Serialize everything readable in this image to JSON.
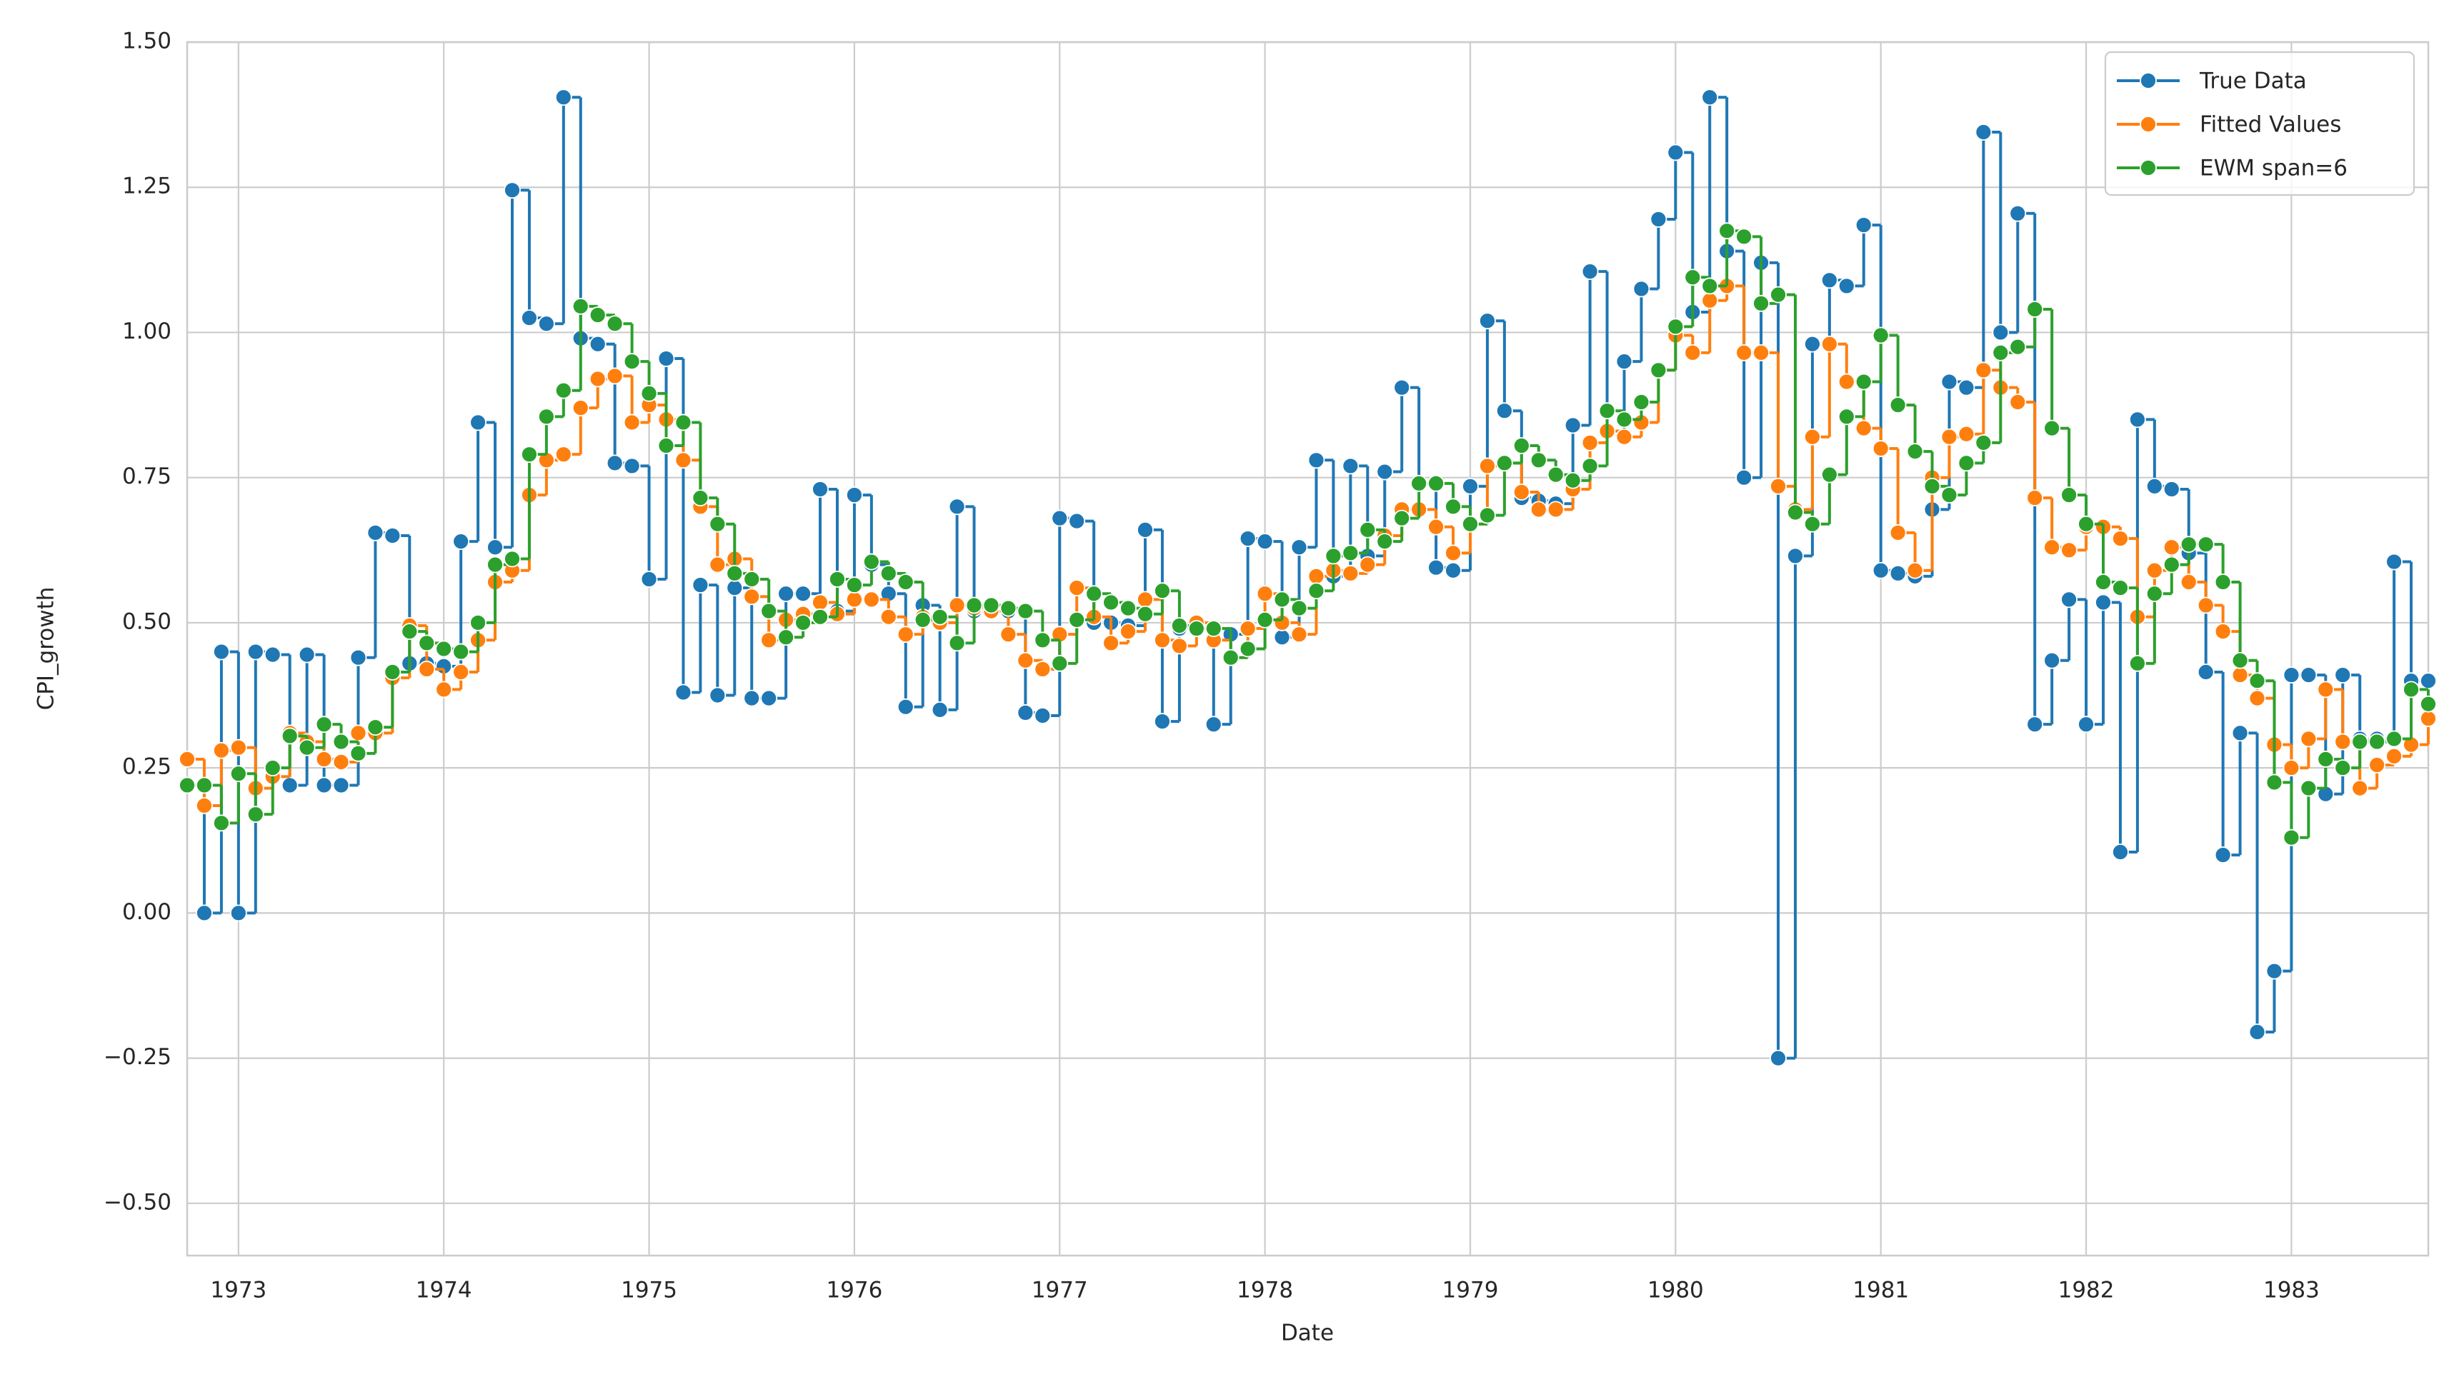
{
  "chart_data": {
    "type": "step-line",
    "xlabel": "Date",
    "ylabel": "CPI_growth",
    "x": [
      "1972-10",
      "1972-11",
      "1972-12",
      "1973-01",
      "1973-02",
      "1973-03",
      "1973-04",
      "1973-05",
      "1973-06",
      "1973-07",
      "1973-08",
      "1973-09",
      "1973-10",
      "1973-11",
      "1973-12",
      "1974-01",
      "1974-02",
      "1974-03",
      "1974-04",
      "1974-05",
      "1974-06",
      "1974-07",
      "1974-08",
      "1974-09",
      "1974-10",
      "1974-11",
      "1974-12",
      "1975-01",
      "1975-02",
      "1975-03",
      "1975-04",
      "1975-05",
      "1975-06",
      "1975-07",
      "1975-08",
      "1975-09",
      "1975-10",
      "1975-11",
      "1975-12",
      "1976-01",
      "1976-02",
      "1976-03",
      "1976-04",
      "1976-05",
      "1976-06",
      "1976-07",
      "1976-08",
      "1976-09",
      "1976-10",
      "1976-11",
      "1976-12",
      "1977-01",
      "1977-02",
      "1977-03",
      "1977-04",
      "1977-05",
      "1977-06",
      "1977-07",
      "1977-08",
      "1977-09",
      "1977-10",
      "1977-11",
      "1977-12",
      "1978-01",
      "1978-02",
      "1978-03",
      "1978-04",
      "1978-05",
      "1978-06",
      "1978-07",
      "1978-08",
      "1978-09",
      "1978-10",
      "1978-11",
      "1978-12",
      "1979-01",
      "1979-02",
      "1979-03",
      "1979-04",
      "1979-05",
      "1979-06",
      "1979-07",
      "1979-08",
      "1979-09",
      "1979-10",
      "1979-11",
      "1979-12",
      "1980-01",
      "1980-02",
      "1980-03",
      "1980-04",
      "1980-05",
      "1980-06",
      "1980-07",
      "1980-08",
      "1980-09",
      "1980-10",
      "1980-11",
      "1980-12",
      "1981-01",
      "1981-02",
      "1981-03",
      "1981-04",
      "1981-05",
      "1981-06",
      "1981-07",
      "1981-08",
      "1981-09",
      "1981-10",
      "1981-11",
      "1981-12",
      "1982-01",
      "1982-02",
      "1982-03",
      "1982-04",
      "1982-05",
      "1982-06",
      "1982-07",
      "1982-08",
      "1982-09",
      "1982-10",
      "1982-11",
      "1982-12",
      "1983-01",
      "1983-02",
      "1983-03",
      "1983-04",
      "1983-05",
      "1983-06",
      "1983-07",
      "1983-08",
      "1983-09"
    ],
    "series": [
      {
        "name": "True Data",
        "color": "#1f77b4",
        "values": [
          0.22,
          0.0,
          0.45,
          0.0,
          0.45,
          0.445,
          0.22,
          0.445,
          0.22,
          0.22,
          0.44,
          0.655,
          0.65,
          0.43,
          0.43,
          0.425,
          0.64,
          0.845,
          0.63,
          1.245,
          1.025,
          1.015,
          1.405,
          0.99,
          0.98,
          0.775,
          0.77,
          0.575,
          0.955,
          0.38,
          0.565,
          0.375,
          0.56,
          0.37,
          0.37,
          0.55,
          0.55,
          0.73,
          0.52,
          0.72,
          0.6,
          0.55,
          0.355,
          0.53,
          0.35,
          0.7,
          0.52,
          0.52,
          0.52,
          0.345,
          0.34,
          0.68,
          0.675,
          0.5,
          0.5,
          0.495,
          0.66,
          0.33,
          0.49,
          0.49,
          0.325,
          0.48,
          0.645,
          0.64,
          0.475,
          0.63,
          0.78,
          0.58,
          0.77,
          0.615,
          0.76,
          0.905,
          0.74,
          0.595,
          0.59,
          0.735,
          1.02,
          0.865,
          0.715,
          0.71,
          0.705,
          0.84,
          1.105,
          0.83,
          0.95,
          1.075,
          1.195,
          1.31,
          1.035,
          1.405,
          1.14,
          0.75,
          1.12,
          -0.25,
          0.615,
          0.98,
          1.09,
          1.08,
          1.185,
          0.59,
          0.585,
          0.58,
          0.695,
          0.915,
          0.905,
          1.345,
          1.0,
          1.205,
          0.325,
          0.435,
          0.54,
          0.325,
          0.535,
          0.105,
          0.85,
          0.735,
          0.73,
          0.62,
          0.415,
          0.1,
          0.31,
          -0.205,
          -0.1,
          0.41,
          0.41,
          0.205,
          0.41,
          0.3,
          0.3,
          0.605,
          0.4,
          0.4
        ]
      },
      {
        "name": "Fitted Values",
        "color": "#ff7f0e",
        "values": [
          0.265,
          0.185,
          0.28,
          0.285,
          0.215,
          0.235,
          0.31,
          0.295,
          0.265,
          0.26,
          0.31,
          0.31,
          0.405,
          0.495,
          0.42,
          0.385,
          0.415,
          0.47,
          0.57,
          0.59,
          0.72,
          0.78,
          0.79,
          0.87,
          0.92,
          0.925,
          0.845,
          0.875,
          0.85,
          0.78,
          0.7,
          0.6,
          0.61,
          0.545,
          0.47,
          0.505,
          0.515,
          0.535,
          0.515,
          0.54,
          0.54,
          0.51,
          0.48,
          0.51,
          0.5,
          0.53,
          0.525,
          0.52,
          0.48,
          0.435,
          0.42,
          0.48,
          0.56,
          0.51,
          0.465,
          0.485,
          0.54,
          0.47,
          0.46,
          0.5,
          0.47,
          0.44,
          0.49,
          0.55,
          0.5,
          0.48,
          0.58,
          0.59,
          0.585,
          0.6,
          0.65,
          0.695,
          0.695,
          0.665,
          0.62,
          0.67,
          0.77,
          0.775,
          0.725,
          0.695,
          0.695,
          0.73,
          0.81,
          0.83,
          0.82,
          0.845,
          0.935,
          0.995,
          0.965,
          1.055,
          1.08,
          0.965,
          0.965,
          0.735,
          0.695,
          0.82,
          0.98,
          0.915,
          0.835,
          0.8,
          0.655,
          0.59,
          0.75,
          0.82,
          0.825,
          0.935,
          0.905,
          0.88,
          0.715,
          0.63,
          0.625,
          0.665,
          0.665,
          0.645,
          0.51,
          0.59,
          0.63,
          0.57,
          0.53,
          0.485,
          0.41,
          0.37,
          0.29,
          0.25,
          0.3,
          0.385,
          0.295,
          0.215,
          0.255,
          0.27,
          0.29,
          0.335
        ]
      },
      {
        "name": "EWM span=6",
        "color": "#2ca02c",
        "values": [
          0.22,
          0.22,
          0.155,
          0.24,
          0.17,
          0.25,
          0.305,
          0.285,
          0.325,
          0.295,
          0.275,
          0.32,
          0.415,
          0.485,
          0.465,
          0.455,
          0.45,
          0.5,
          0.6,
          0.61,
          0.79,
          0.855,
          0.9,
          1.045,
          1.03,
          1.015,
          0.95,
          0.895,
          0.805,
          0.845,
          0.715,
          0.67,
          0.585,
          0.575,
          0.52,
          0.475,
          0.5,
          0.51,
          0.575,
          0.565,
          0.605,
          0.585,
          0.57,
          0.505,
          0.51,
          0.465,
          0.53,
          0.53,
          0.525,
          0.52,
          0.47,
          0.43,
          0.505,
          0.55,
          0.535,
          0.525,
          0.515,
          0.555,
          0.495,
          0.49,
          0.49,
          0.44,
          0.455,
          0.505,
          0.54,
          0.525,
          0.555,
          0.615,
          0.62,
          0.66,
          0.64,
          0.68,
          0.74,
          0.74,
          0.7,
          0.67,
          0.685,
          0.775,
          0.805,
          0.78,
          0.755,
          0.745,
          0.77,
          0.865,
          0.85,
          0.88,
          0.935,
          1.01,
          1.095,
          1.08,
          1.175,
          1.165,
          1.05,
          1.065,
          0.69,
          0.67,
          0.755,
          0.855,
          0.915,
          0.995,
          0.875,
          0.795,
          0.735,
          0.72,
          0.775,
          0.81,
          0.965,
          0.975,
          1.04,
          0.835,
          0.72,
          0.67,
          0.57,
          0.56,
          0.43,
          0.55,
          0.6,
          0.635,
          0.635,
          0.57,
          0.435,
          0.4,
          0.225,
          0.13,
          0.215,
          0.265,
          0.25,
          0.295,
          0.295,
          0.3,
          0.385,
          0.36
        ]
      }
    ],
    "xlim": [
      "1972-10",
      "1983-09"
    ],
    "xticks": [
      "1973",
      "1974",
      "1975",
      "1976",
      "1977",
      "1978",
      "1979",
      "1980",
      "1981",
      "1982",
      "1983"
    ],
    "ylim": [
      -0.59,
      1.5
    ],
    "yticks": [
      {
        "value": -0.5,
        "label": "−0.50"
      },
      {
        "value": -0.25,
        "label": "−0.25"
      },
      {
        "value": 0,
        "label": "0.00"
      },
      {
        "value": 0.25,
        "label": "0.25"
      },
      {
        "value": 0.5,
        "label": "0.50"
      },
      {
        "value": 0.75,
        "label": "0.75"
      },
      {
        "value": 1,
        "label": "1.00"
      },
      {
        "value": 1.25,
        "label": "1.25"
      },
      {
        "value": 1.5,
        "label": "1.50"
      }
    ],
    "grid": true,
    "legend": "upper right"
  }
}
